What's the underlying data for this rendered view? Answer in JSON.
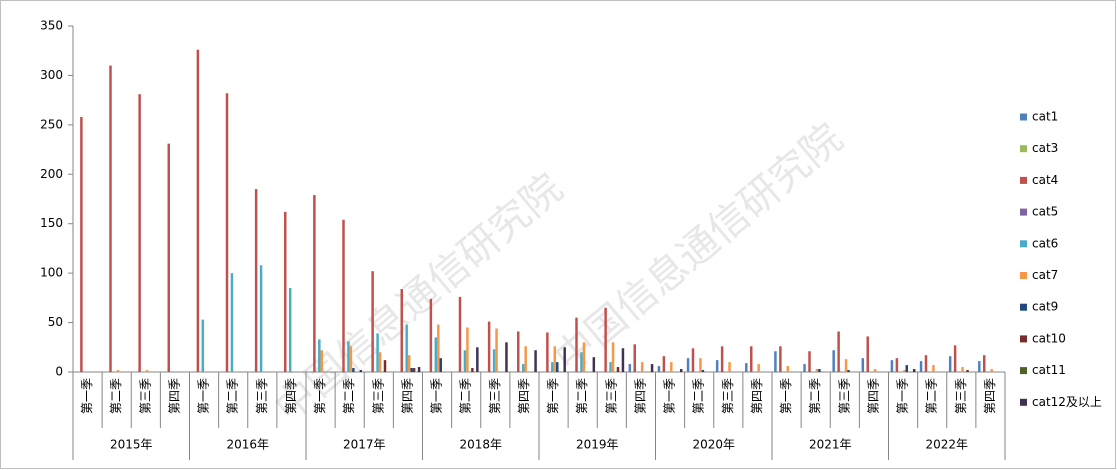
{
  "chart_data": {
    "type": "bar",
    "watermark": "中国信息通信研究院",
    "categories": [
      "第一季",
      "第二季",
      "第三季",
      "第四季",
      "第一季",
      "第二季",
      "第三季",
      "第四季",
      "第一季",
      "第二季",
      "第三季",
      "第四季",
      "第一季",
      "第二季",
      "第三季",
      "第四季",
      "第一季",
      "第二季",
      "第三季",
      "第四季",
      "第一季",
      "第二季",
      "第三季",
      "第四季",
      "第一季",
      "第二季",
      "第三季",
      "第四季",
      "第一季",
      "第二季",
      "第三季",
      "第四季"
    ],
    "groups": [
      "2015年",
      "2016年",
      "2017年",
      "2018年",
      "2019年",
      "2020年",
      "2021年",
      "2022年"
    ],
    "ylim": [
      0,
      350
    ],
    "yticks": [
      0,
      50,
      100,
      150,
      200,
      250,
      300,
      350
    ],
    "grid": false,
    "legend": "right",
    "series": [
      {
        "name": "cat1",
        "color": "#4f81bd",
        "values": [
          0,
          0,
          0,
          0,
          0,
          0,
          0,
          0,
          0,
          0,
          0,
          0,
          0,
          0,
          0,
          0,
          0,
          0,
          0,
          8,
          6,
          14,
          12,
          9,
          21,
          8,
          22,
          14,
          12,
          11,
          16,
          11
        ]
      },
      {
        "name": "cat3",
        "color": "#9bbb59",
        "values": [
          0,
          0,
          0,
          0,
          0,
          0,
          0,
          0,
          0,
          0,
          0,
          0,
          0,
          0,
          0,
          0,
          0,
          0,
          0,
          0,
          0,
          0,
          0,
          0,
          0,
          0,
          0,
          0,
          0,
          0,
          0,
          0
        ]
      },
      {
        "name": "cat4",
        "color": "#c0504d",
        "values": [
          258,
          310,
          281,
          231,
          326,
          282,
          185,
          162,
          179,
          154,
          102,
          84,
          74,
          76,
          51,
          41,
          40,
          55,
          65,
          28,
          16,
          24,
          26,
          26,
          26,
          21,
          41,
          36,
          14,
          17,
          27,
          17
        ]
      },
      {
        "name": "cat5",
        "color": "#8064a2",
        "values": [
          0,
          0,
          0,
          0,
          0,
          0,
          0,
          0,
          0,
          0,
          0,
          0,
          0,
          0,
          0,
          0,
          0,
          0,
          0,
          0,
          0,
          0,
          0,
          0,
          0,
          0,
          0,
          0,
          0,
          0,
          0,
          0
        ]
      },
      {
        "name": "cat6",
        "color": "#4bacc6",
        "values": [
          0,
          0,
          0,
          0,
          53,
          100,
          108,
          85,
          33,
          31,
          39,
          48,
          35,
          22,
          23,
          8,
          10,
          20,
          10,
          0,
          0,
          0,
          0,
          0,
          0,
          0,
          0,
          0,
          0,
          0,
          0,
          0
        ]
      },
      {
        "name": "cat7",
        "color": "#f79646",
        "values": [
          0,
          2,
          2,
          0,
          0,
          0,
          0,
          0,
          22,
          26,
          20,
          17,
          48,
          45,
          44,
          26,
          26,
          30,
          30,
          10,
          10,
          14,
          10,
          8,
          6,
          3,
          13,
          3,
          2,
          7,
          5,
          3
        ]
      },
      {
        "name": "cat9",
        "color": "#1f497d",
        "values": [
          0,
          0,
          0,
          0,
          0,
          0,
          0,
          0,
          0,
          4,
          0,
          4,
          14,
          0,
          0,
          0,
          10,
          0,
          0,
          0,
          0,
          2,
          0,
          0,
          0,
          3,
          2,
          0,
          7,
          0,
          0,
          0
        ]
      },
      {
        "name": "cat10",
        "color": "#772c2a",
        "values": [
          0,
          0,
          0,
          0,
          0,
          0,
          0,
          0,
          0,
          0,
          12,
          4,
          0,
          4,
          0,
          0,
          0,
          0,
          5,
          0,
          0,
          0,
          0,
          0,
          0,
          0,
          0,
          0,
          0,
          0,
          2,
          0
        ]
      },
      {
        "name": "cat11",
        "color": "#4f6228",
        "values": [
          0,
          0,
          0,
          0,
          0,
          0,
          0,
          0,
          0,
          0,
          0,
          0,
          0,
          0,
          0,
          0,
          0,
          0,
          0,
          0,
          0,
          0,
          0,
          0,
          0,
          0,
          0,
          0,
          0,
          0,
          0,
          0
        ]
      },
      {
        "name": "cat12及以上",
        "color": "#403152",
        "values": [
          0,
          0,
          0,
          0,
          0,
          0,
          0,
          0,
          0,
          2,
          0,
          5,
          0,
          25,
          30,
          22,
          25,
          15,
          24,
          8,
          3,
          0,
          0,
          0,
          0,
          0,
          0,
          0,
          3,
          0,
          0,
          0
        ]
      }
    ]
  }
}
